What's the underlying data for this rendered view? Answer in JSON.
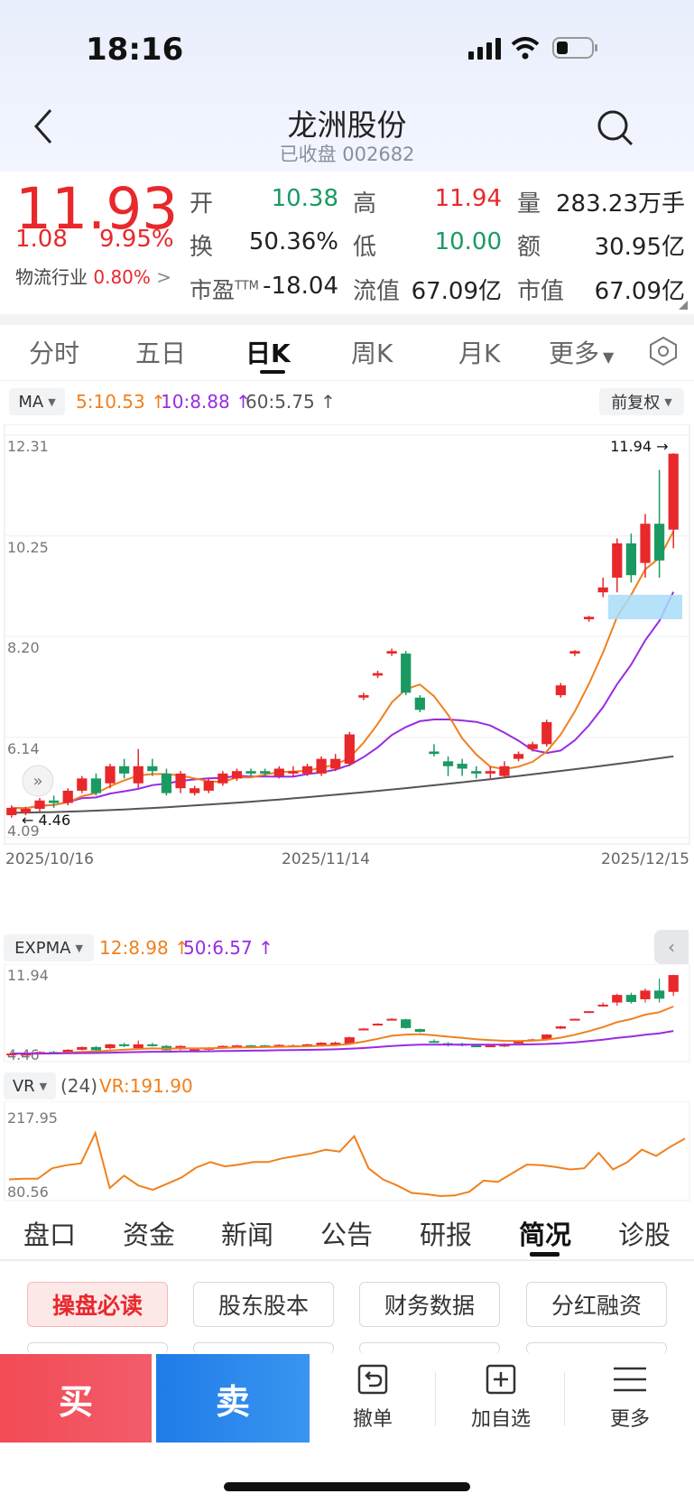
{
  "status": {
    "time": "18:16"
  },
  "header": {
    "title": "龙洲股份",
    "subtitle": "已收盘 002682"
  },
  "quote": {
    "price": "11.93",
    "change": "1.08",
    "change_pct": "9.95%",
    "industry_label": "物流行业",
    "industry_pct": "0.80%",
    "rows": [
      [
        {
          "label": "开",
          "value": "10.38",
          "color": "green"
        },
        {
          "label": "高",
          "value": "11.94",
          "color": "red"
        },
        {
          "label": "量",
          "value": "283.23万手",
          "color": "black"
        }
      ],
      [
        {
          "label": "换",
          "value": "50.36%",
          "color": "black"
        },
        {
          "label": "低",
          "value": "10.00",
          "color": "green"
        },
        {
          "label": "额",
          "value": "30.95亿",
          "color": "black"
        }
      ],
      [
        {
          "label": "市盈TTM",
          "value": "-18.04",
          "color": "black"
        },
        {
          "label": "流值",
          "value": "67.09亿",
          "color": "black"
        },
        {
          "label": "市值",
          "value": "67.09亿",
          "color": "black"
        }
      ]
    ]
  },
  "chart_tabs": [
    "分时",
    "五日",
    "日K",
    "周K",
    "月K",
    "更多"
  ],
  "ma_bar": {
    "selector": "MA",
    "ma5": "5:10.53",
    "ma10": "10:8.88",
    "ma60": "60:5.75",
    "adjust": "前复权"
  },
  "kline": {
    "y_labels": [
      "12.31",
      "10.25",
      "8.20",
      "6.14",
      "4.09"
    ],
    "x_labels": [
      "2025/10/16",
      "2025/11/14",
      "2025/12/15"
    ],
    "high_label": "11.94",
    "low_label": "4.46"
  },
  "expma_bar": {
    "selector": "EXPMA",
    "v12": "12:8.98",
    "v50": "50:6.57",
    "y_top": "11.94",
    "y_bottom": "4.46"
  },
  "vr_bar": {
    "selector": "VR",
    "period": "(24)",
    "value": "VR:191.90",
    "y_top": "217.95",
    "y_bottom": "80.56"
  },
  "bottom_tabs": [
    "盘口",
    "资金",
    "新闻",
    "公告",
    "研报",
    "简况",
    "诊股"
  ],
  "chips": [
    "操盘必读",
    "股东股本",
    "财务数据",
    "分红融资"
  ],
  "actions": {
    "buy": "买",
    "sell": "卖",
    "cancel": "撤单",
    "watch": "加自选",
    "more": "更多"
  },
  "colors": {
    "up": "#e8282b",
    "down": "#1a9a62",
    "ma5": "#f0801e",
    "ma10": "#9a2be2",
    "ma60": "#555555"
  },
  "chart_data": {
    "type": "candlestick",
    "ylim": [
      4.09,
      12.31
    ],
    "candles": [
      [
        4.55,
        4.7,
        4.75,
        4.5
      ],
      [
        4.6,
        4.68,
        4.72,
        4.55
      ],
      [
        4.68,
        4.85,
        4.9,
        4.62
      ],
      [
        4.85,
        4.8,
        4.95,
        4.7
      ],
      [
        4.8,
        5.05,
        5.1,
        4.75
      ],
      [
        5.05,
        5.3,
        5.35,
        5.0
      ],
      [
        5.3,
        5.0,
        5.4,
        4.95
      ],
      [
        5.2,
        5.55,
        5.6,
        5.1
      ],
      [
        5.55,
        5.4,
        5.7,
        5.3
      ],
      [
        5.2,
        5.55,
        5.9,
        5.1
      ],
      [
        5.55,
        5.45,
        5.7,
        5.35
      ],
      [
        5.4,
        5.0,
        5.5,
        4.95
      ],
      [
        5.1,
        5.4,
        5.45,
        5.0
      ],
      [
        5.0,
        5.1,
        5.15,
        4.95
      ],
      [
        5.05,
        5.25,
        5.3,
        5.0
      ],
      [
        5.2,
        5.4,
        5.45,
        5.15
      ],
      [
        5.3,
        5.45,
        5.5,
        5.25
      ],
      [
        5.45,
        5.4,
        5.5,
        5.35
      ],
      [
        5.45,
        5.4,
        5.5,
        5.35
      ],
      [
        5.35,
        5.5,
        5.55,
        5.3
      ],
      [
        5.4,
        5.45,
        5.55,
        5.35
      ],
      [
        5.4,
        5.55,
        5.6,
        5.35
      ],
      [
        5.4,
        5.7,
        5.75,
        5.35
      ],
      [
        5.5,
        5.7,
        5.8,
        5.45
      ],
      [
        5.6,
        6.2,
        6.25,
        5.55
      ],
      [
        6.95,
        7.0,
        7.05,
        6.9
      ],
      [
        7.4,
        7.45,
        7.5,
        7.35
      ],
      [
        7.85,
        7.9,
        7.95,
        7.8
      ],
      [
        7.85,
        7.05,
        7.9,
        7.0
      ],
      [
        6.95,
        6.7,
        7.0,
        6.65
      ],
      [
        5.85,
        5.8,
        6.0,
        5.75
      ],
      [
        5.65,
        5.55,
        5.75,
        5.35
      ],
      [
        5.6,
        5.5,
        5.7,
        5.35
      ],
      [
        5.45,
        5.4,
        5.55,
        5.3
      ],
      [
        5.4,
        5.45,
        5.55,
        5.3
      ],
      [
        5.35,
        5.55,
        5.65,
        5.3
      ],
      [
        5.7,
        5.8,
        5.85,
        5.65
      ],
      [
        5.9,
        6.0,
        6.05,
        5.85
      ],
      [
        6.0,
        6.45,
        6.5,
        5.95
      ],
      [
        7.0,
        7.2,
        7.25,
        6.95
      ],
      [
        7.85,
        7.9,
        7.92,
        7.8
      ],
      [
        8.55,
        8.6,
        8.62,
        8.5
      ],
      [
        9.1,
        9.2,
        9.4,
        9.0
      ],
      [
        9.4,
        10.1,
        10.2,
        9.1
      ],
      [
        10.1,
        9.45,
        10.3,
        9.3
      ],
      [
        9.7,
        10.5,
        10.7,
        9.4
      ],
      [
        10.5,
        9.75,
        11.6,
        9.4
      ],
      [
        10.38,
        11.93,
        11.94,
        10.0
      ]
    ],
    "ma5_final": 10.53,
    "ma10_final": 8.88,
    "ma60_final": 5.75
  }
}
